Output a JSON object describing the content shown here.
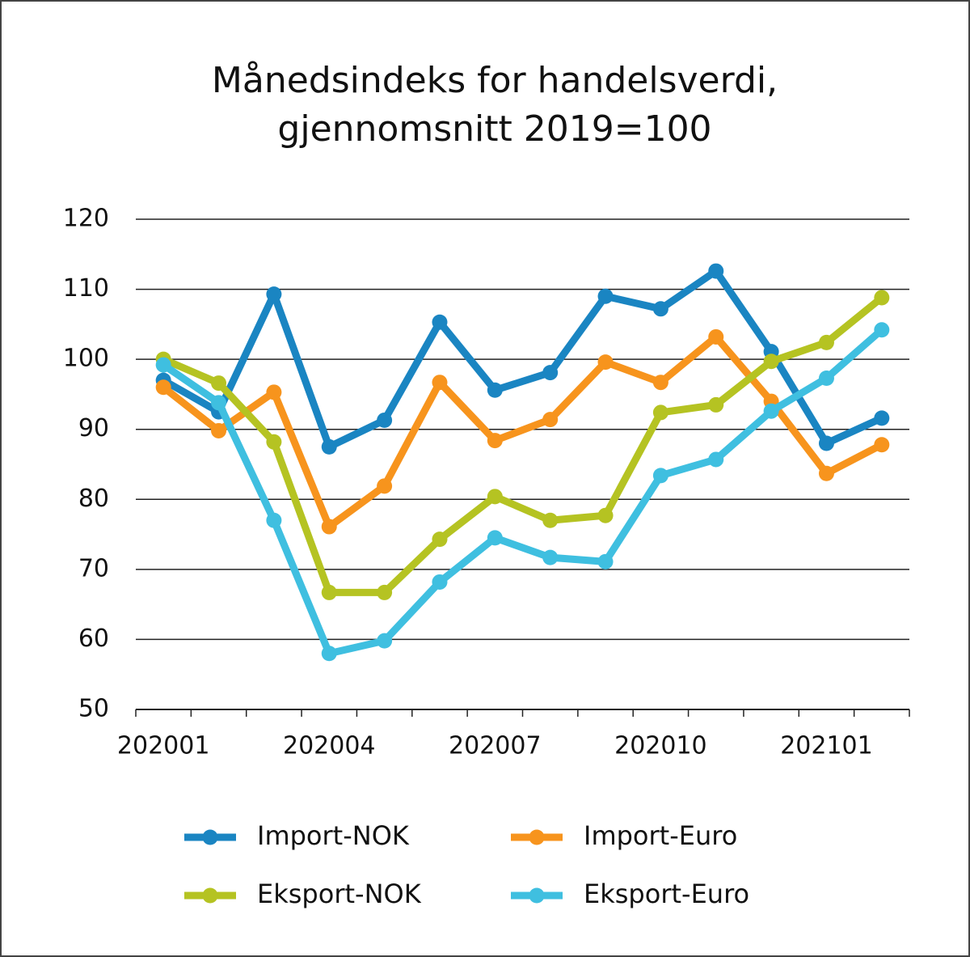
{
  "chart_data": {
    "type": "line",
    "title": [
      "Månedsindeks for handelsverdi,",
      "gjennomsnitt 2019=100"
    ],
    "categories": [
      "202001",
      null,
      null,
      "202004",
      null,
      null,
      "202007",
      null,
      null,
      "202010",
      null,
      null,
      "202101",
      null
    ],
    "series": [
      {
        "name": "Import-NOK",
        "color": "#1a85c2",
        "values": [
          97,
          92.5,
          109.3,
          87.5,
          91.3,
          105.3,
          95.6,
          98.1,
          109,
          107.2,
          112.6,
          101.1,
          88,
          91.6
        ]
      },
      {
        "name": "Import-Euro",
        "color": "#f7941d",
        "values": [
          96,
          89.8,
          95.3,
          76.1,
          81.9,
          96.7,
          88.4,
          91.4,
          99.6,
          96.7,
          103.2,
          94,
          83.7,
          87.8
        ]
      },
      {
        "name": "Eksport-NOK",
        "color": "#b5c322",
        "values": [
          100,
          96.6,
          88.2,
          66.7,
          66.7,
          74.3,
          80.4,
          77,
          77.7,
          92.4,
          93.5,
          99.7,
          102.4,
          108.8
        ]
      },
      {
        "name": "Eksport-Euro",
        "color": "#3fbfe0",
        "values": [
          99.2,
          93.8,
          77,
          58,
          59.8,
          68.2,
          74.5,
          71.7,
          71.1,
          83.4,
          85.7,
          92.6,
          97.3,
          104.2
        ]
      }
    ],
    "ylim": [
      50,
      120
    ],
    "yticks": [
      50,
      60,
      70,
      80,
      90,
      100,
      110,
      120
    ],
    "grid": true
  }
}
